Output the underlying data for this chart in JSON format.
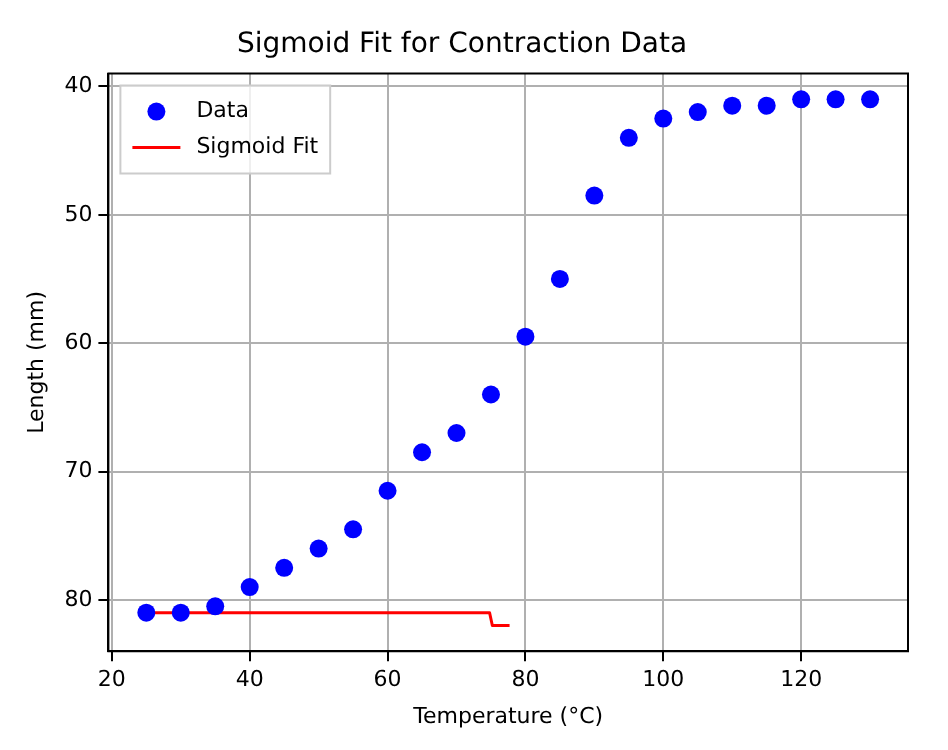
{
  "chart_data": {
    "type": "scatter",
    "title": "Sigmoid Fit for Contraction Data",
    "xlabel": "Temperature (°C)",
    "ylabel": "Length (mm)",
    "series": [
      {
        "name": "Data",
        "type": "scatter",
        "color": "#0000ff",
        "marker": "circle",
        "x": [
          25,
          30,
          35,
          40,
          45,
          50,
          55,
          60,
          65,
          70,
          75,
          80,
          85,
          90,
          95,
          100,
          105,
          110,
          115,
          120,
          125,
          130
        ],
        "values": [
          81,
          81,
          80.5,
          79,
          77.5,
          76,
          74.5,
          71.5,
          68.5,
          67,
          64,
          59.5,
          55,
          48.5,
          44,
          42.5,
          42,
          41.5,
          41.5,
          41,
          41,
          41
        ]
      },
      {
        "name": "Sigmoid Fit",
        "type": "line",
        "color": "#ff0000",
        "marker": "none",
        "line_style": "solid",
        "x": [
          25,
          74.8,
          75.2,
          77.7
        ],
        "values": [
          81,
          81,
          82,
          82
        ]
      }
    ],
    "xlim": [
      19.5,
      135.5
    ],
    "xticks": [
      20,
      40,
      60,
      80,
      100,
      120
    ],
    "ylim": [
      84,
      39
    ],
    "yticks": [
      40,
      50,
      60,
      70,
      80
    ],
    "grid": true,
    "legend": "top left"
  }
}
